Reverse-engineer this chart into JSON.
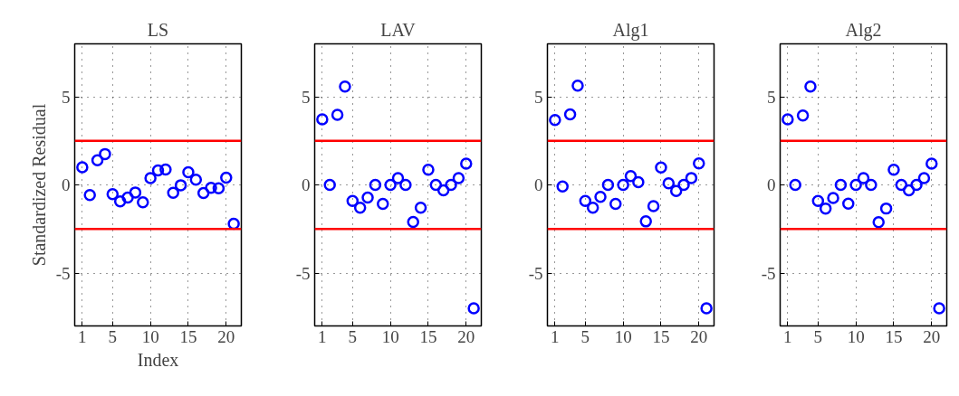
{
  "chart_data": [
    {
      "type": "scatter",
      "title": "LS",
      "xlabel": "Index",
      "ylabel": "Standardized Residual",
      "x": [
        1,
        2,
        3,
        4,
        5,
        6,
        7,
        8,
        9,
        10,
        11,
        12,
        13,
        14,
        15,
        16,
        17,
        18,
        19,
        20,
        21
      ],
      "series": [
        {
          "color": "#0000ff",
          "values": [
            1.0,
            -0.58,
            1.4,
            1.75,
            -0.53,
            -0.94,
            -0.72,
            -0.43,
            -0.99,
            0.38,
            0.82,
            0.87,
            -0.45,
            -0.02,
            0.72,
            0.29,
            -0.46,
            -0.17,
            -0.19,
            0.41,
            -2.2
          ]
        }
      ],
      "xlim": [
        0,
        22
      ],
      "xticks": [
        1,
        5,
        10,
        15,
        20
      ],
      "ylim": [
        -8,
        8
      ],
      "yticks": [
        -5,
        0,
        5
      ],
      "grid": true,
      "marker": "circle",
      "ref_lines": [
        {
          "axis": "y",
          "value": 2.5,
          "color": "#ff0000"
        },
        {
          "axis": "y",
          "value": -2.5,
          "color": "#ff0000"
        }
      ]
    },
    {
      "type": "scatter",
      "title": "LAV",
      "x": [
        1,
        2,
        3,
        4,
        5,
        6,
        7,
        8,
        9,
        10,
        11,
        12,
        13,
        14,
        15,
        16,
        17,
        18,
        19,
        20,
        21
      ],
      "series": [
        {
          "color": "#0000ff",
          "values": [
            3.72,
            0,
            3.97,
            5.58,
            -0.91,
            -1.3,
            -0.72,
            0,
            -1.08,
            0,
            0.38,
            0,
            -2.1,
            -1.3,
            0.86,
            0,
            -0.31,
            0,
            0.38,
            1.2,
            -7.0
          ]
        }
      ],
      "xlim": [
        0,
        22
      ],
      "xticks": [
        1,
        5,
        10,
        15,
        20
      ],
      "ylim": [
        -8,
        8
      ],
      "yticks": [
        -5,
        0,
        5
      ],
      "grid": true,
      "marker": "circle",
      "ref_lines": [
        {
          "axis": "y",
          "value": 2.5,
          "color": "#ff0000"
        },
        {
          "axis": "y",
          "value": -2.5,
          "color": "#ff0000"
        }
      ]
    },
    {
      "type": "scatter",
      "title": "Alg1",
      "x": [
        1,
        2,
        3,
        4,
        5,
        6,
        7,
        8,
        9,
        10,
        11,
        12,
        13,
        14,
        15,
        16,
        17,
        18,
        19,
        20,
        21
      ],
      "series": [
        {
          "color": "#0000ff",
          "values": [
            3.68,
            -0.09,
            4.0,
            5.63,
            -0.91,
            -1.3,
            -0.68,
            0,
            -1.08,
            0,
            0.5,
            0.15,
            -2.07,
            -1.2,
            0.99,
            0.09,
            -0.34,
            0,
            0.39,
            1.22,
            -7.0
          ]
        }
      ],
      "xlim": [
        0,
        22
      ],
      "xticks": [
        1,
        5,
        10,
        15,
        20
      ],
      "ylim": [
        -8,
        8
      ],
      "yticks": [
        -5,
        0,
        5
      ],
      "grid": true,
      "marker": "circle",
      "ref_lines": [
        {
          "axis": "y",
          "value": 2.5,
          "color": "#ff0000"
        },
        {
          "axis": "y",
          "value": -2.5,
          "color": "#ff0000"
        }
      ]
    },
    {
      "type": "scatter",
      "title": "Alg2",
      "x": [
        1,
        2,
        3,
        4,
        5,
        6,
        7,
        8,
        9,
        10,
        11,
        12,
        13,
        14,
        15,
        16,
        17,
        18,
        19,
        20,
        21
      ],
      "series": [
        {
          "color": "#0000ff",
          "values": [
            3.72,
            0,
            3.94,
            5.58,
            -0.91,
            -1.34,
            -0.74,
            0,
            -1.06,
            0,
            0.38,
            0,
            -2.12,
            -1.34,
            0.86,
            0,
            -0.31,
            0,
            0.38,
            1.2,
            -7.0
          ]
        }
      ],
      "xlim": [
        0,
        22
      ],
      "xticks": [
        1,
        5,
        10,
        15,
        20
      ],
      "ylim": [
        -8,
        8
      ],
      "yticks": [
        -5,
        0,
        5
      ],
      "grid": true,
      "marker": "circle",
      "ref_lines": [
        {
          "axis": "y",
          "value": 2.5,
          "color": "#ff0000"
        },
        {
          "axis": "y",
          "value": -2.5,
          "color": "#ff0000"
        }
      ]
    }
  ]
}
